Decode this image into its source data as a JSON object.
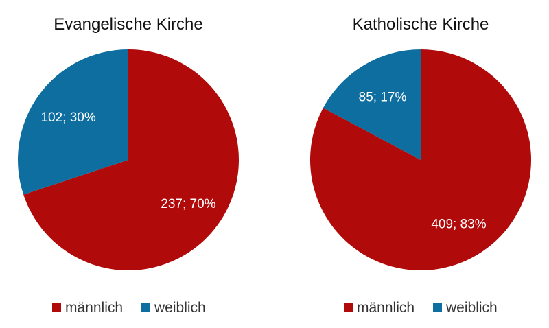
{
  "colors": {
    "maennlich": "#b10a0a",
    "weiblich": "#0f6ea0"
  },
  "chart_data": [
    {
      "type": "pie",
      "title": "Evangelische Kirche",
      "slices": [
        {
          "name": "männlich",
          "value": 237,
          "percent": 70,
          "label": "237; 70%",
          "color": "#b10a0a"
        },
        {
          "name": "weiblich",
          "value": 102,
          "percent": 30,
          "label": "102; 30%",
          "color": "#0f6ea0"
        }
      ],
      "legend": [
        {
          "label": "männlich",
          "color": "#b10a0a"
        },
        {
          "label": "weiblich",
          "color": "#0f6ea0"
        }
      ],
      "legend_position": "bottom"
    },
    {
      "type": "pie",
      "title": "Katholische Kirche",
      "slices": [
        {
          "name": "männlich",
          "value": 409,
          "percent": 83,
          "label": "409; 83%",
          "color": "#b10a0a"
        },
        {
          "name": "weiblich",
          "value": 85,
          "percent": 17,
          "label": "85; 17%",
          "color": "#0f6ea0"
        }
      ],
      "legend": [
        {
          "label": "männlich",
          "color": "#b10a0a"
        },
        {
          "label": "weiblich",
          "color": "#0f6ea0"
        }
      ],
      "legend_position": "bottom"
    }
  ]
}
